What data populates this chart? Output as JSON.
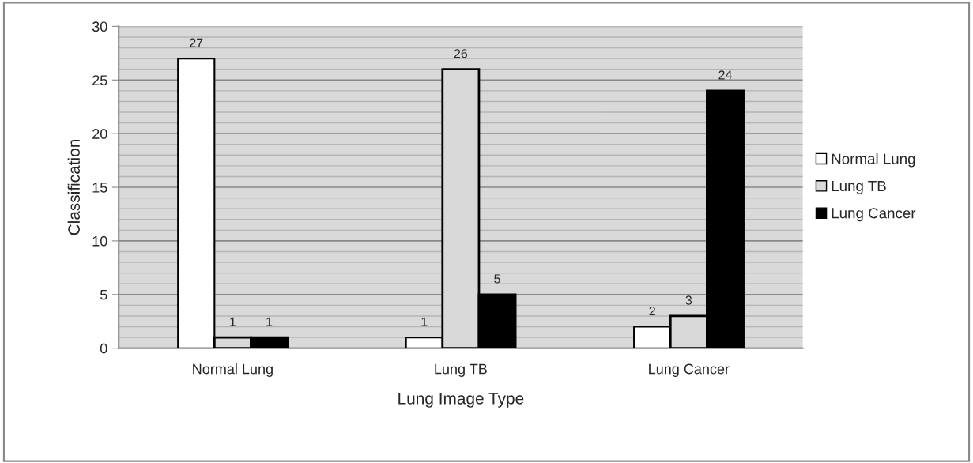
{
  "chart_data": {
    "type": "bar",
    "xlabel": "Lung Image Type",
    "ylabel": "Classification",
    "categories": [
      "Normal Lung",
      "Lung TB",
      "Lung Cancer"
    ],
    "series": [
      {
        "name": "Normal Lung",
        "color": "#ffffff",
        "values": [
          27,
          1,
          2
        ]
      },
      {
        "name": "Lung TB",
        "color": "#d9d9d9",
        "values": [
          1,
          26,
          3
        ]
      },
      {
        "name": "Lung Cancer",
        "color": "#000000",
        "values": [
          1,
          5,
          24
        ]
      }
    ],
    "ylim": [
      0,
      30
    ],
    "yticks": [
      0,
      5,
      10,
      15,
      20,
      25,
      30
    ],
    "grid": "y",
    "legend": "right",
    "data_labels": true
  }
}
